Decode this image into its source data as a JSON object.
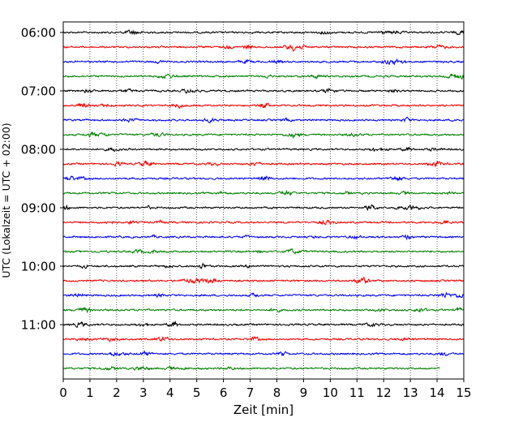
{
  "chart_data": {
    "type": "line",
    "title": "",
    "xlabel": "Zeit  [min]",
    "ylabel": "UTC (Lokalzeit = UTC + 02:00)",
    "xlim": [
      0,
      15
    ],
    "x_ticks": [
      0,
      1,
      2,
      3,
      4,
      5,
      6,
      7,
      8,
      9,
      10,
      11,
      12,
      13,
      14,
      15
    ],
    "y_tick_labels": [
      "06:00",
      "07:00",
      "08:00",
      "09:00",
      "10:00",
      "11:00"
    ],
    "grid": "vertical dotted",
    "trace_minutes": 15,
    "last_trace_end_min": 14.1,
    "color_cycle": [
      "#000000",
      "#ff0000",
      "#0000ff",
      "#008000"
    ],
    "traces": [
      {
        "start": "06:00"
      },
      {
        "start": "06:15"
      },
      {
        "start": "06:30"
      },
      {
        "start": "06:45"
      },
      {
        "start": "07:00"
      },
      {
        "start": "07:15"
      },
      {
        "start": "07:30"
      },
      {
        "start": "07:45"
      },
      {
        "start": "08:00"
      },
      {
        "start": "08:15"
      },
      {
        "start": "08:30"
      },
      {
        "start": "08:45"
      },
      {
        "start": "09:00"
      },
      {
        "start": "09:15"
      },
      {
        "start": "09:30"
      },
      {
        "start": "09:45"
      },
      {
        "start": "10:00"
      },
      {
        "start": "10:15"
      },
      {
        "start": "10:30"
      },
      {
        "start": "10:45"
      },
      {
        "start": "11:00"
      },
      {
        "start": "11:15"
      },
      {
        "start": "11:30"
      },
      {
        "start": "11:45"
      }
    ]
  }
}
